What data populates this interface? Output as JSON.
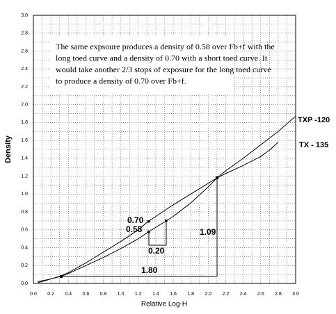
{
  "chart_data": {
    "type": "line",
    "xlabel": "Relative Log-H",
    "ylabel": "Density",
    "xlim": [
      0,
      3
    ],
    "ylim": [
      0,
      3
    ],
    "xticks": [
      {
        "value": 0,
        "label": "0.0"
      },
      0.2,
      0.4,
      0.6,
      0.8,
      {
        "value": 1,
        "label": "1.0"
      },
      1.2,
      1.4,
      1.6,
      1.8,
      {
        "value": 2,
        "label": "2.0"
      },
      2.2,
      2.4,
      2.6,
      2.8,
      {
        "value": 3,
        "label": "3.0"
      }
    ],
    "yticks": [
      {
        "value": 0,
        "label": "0.0"
      },
      0.2,
      0.4,
      0.6,
      0.8,
      {
        "value": 1,
        "label": "1.0"
      },
      1.2,
      1.4,
      1.6,
      1.8,
      {
        "value": 2,
        "label": "2.0"
      },
      2.2,
      2.4,
      2.6,
      2.8,
      {
        "value": 3,
        "label": "3.0"
      }
    ],
    "grid": true,
    "series": [
      {
        "name": "TXP -120",
        "color": "#000000",
        "x": [
          0.05,
          0.1,
          0.2,
          0.32,
          0.4,
          0.6,
          0.8,
          1.0,
          1.2,
          1.32,
          1.52,
          1.6,
          1.8,
          2.0,
          2.1,
          2.2,
          2.4,
          2.6,
          2.8,
          3.0
        ],
        "values": [
          0.01,
          0.02,
          0.05,
          0.08,
          0.11,
          0.2,
          0.29,
          0.39,
          0.5,
          0.58,
          0.7,
          0.75,
          0.9,
          1.08,
          1.18,
          1.26,
          1.4,
          1.55,
          1.7,
          1.87
        ]
      },
      {
        "name": "TX - 135",
        "color": "#000000",
        "x": [
          0.05,
          0.1,
          0.2,
          0.3,
          0.4,
          0.6,
          0.8,
          1.0,
          1.2,
          1.32,
          1.4,
          1.6,
          1.8,
          2.0,
          2.1,
          2.2,
          2.4,
          2.6,
          2.7,
          2.8
        ],
        "values": [
          0.02,
          0.03,
          0.05,
          0.08,
          0.12,
          0.23,
          0.35,
          0.47,
          0.6,
          0.7,
          0.75,
          0.88,
          1.0,
          1.12,
          1.18,
          1.23,
          1.32,
          1.42,
          1.49,
          1.58
        ]
      }
    ],
    "annotation": [
      "The same expsoure produces a density of 0.58 over Fb+f with the",
      "long toed curve and a density of 0.70 with a short toed curve.  It",
      "would take another 2/3 stops of exposure for the long toed curve",
      "to produce a density of 0.70 over Fb+f."
    ],
    "callouts": [
      "0.70",
      "0.58",
      "0.20",
      "1.09",
      "1.80"
    ]
  }
}
